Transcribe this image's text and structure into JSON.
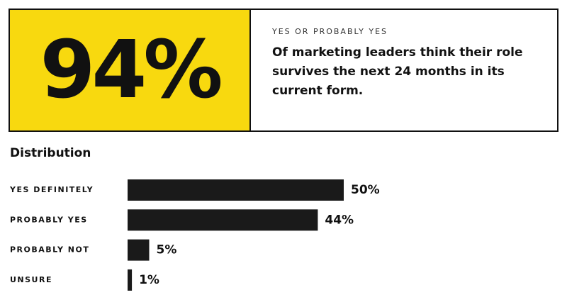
{
  "header": {
    "stat": "94%",
    "caption": "YES OR PROBABLY YES",
    "description": "Of marketing leaders think their role survives the next 24 months in its current form."
  },
  "chart_data": {
    "type": "bar",
    "orientation": "horizontal",
    "title": "Distribution",
    "categories": [
      "YES DEFINITELY",
      "PROBABLY YES",
      "PROBABLY NOT",
      "UNSURE"
    ],
    "values": [
      50,
      44,
      5,
      1
    ],
    "value_labels": [
      "50%",
      "44%",
      "5%",
      "1%"
    ],
    "color": "#1a1a1a"
  }
}
